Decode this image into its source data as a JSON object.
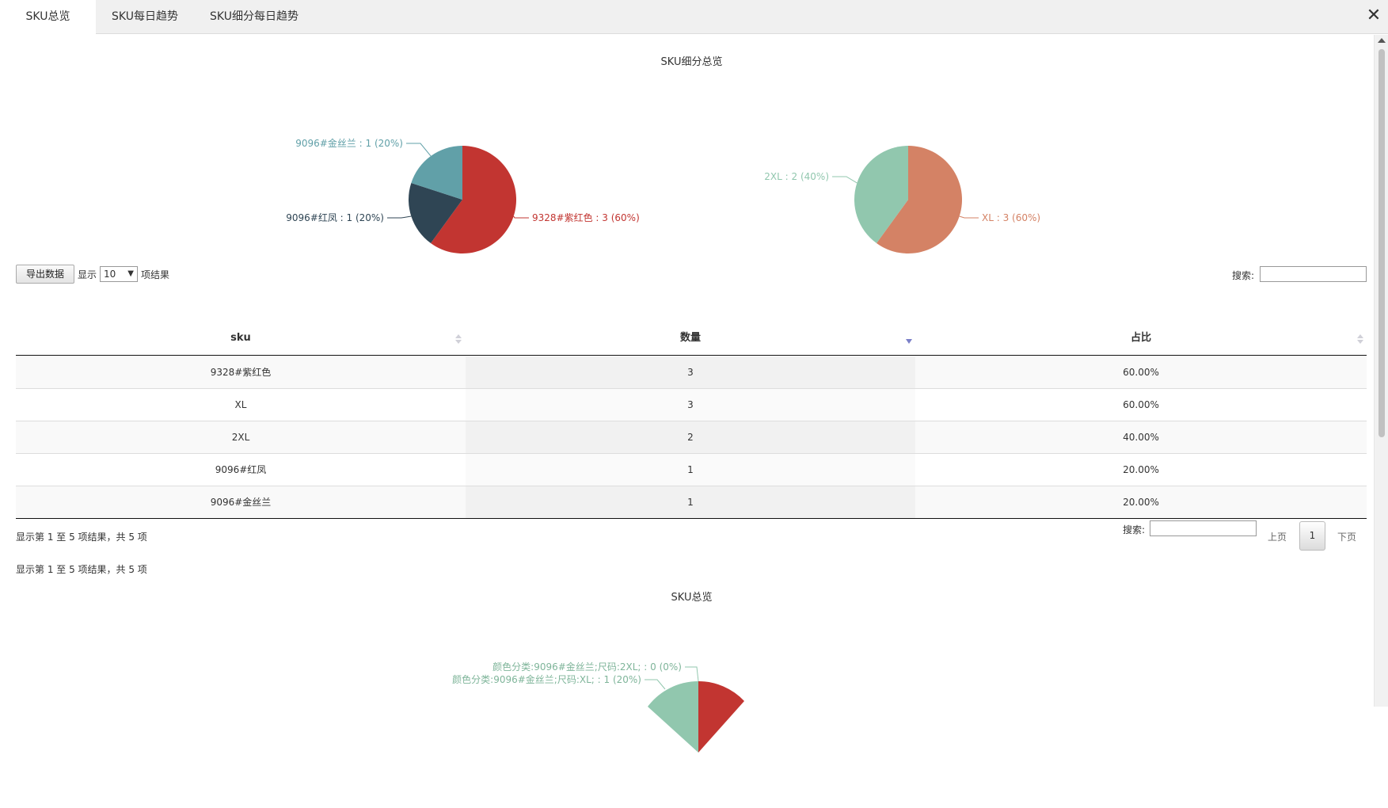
{
  "tabs": [
    {
      "label": "SKU总览"
    },
    {
      "label": "SKU每日趋势"
    },
    {
      "label": "SKU细分每日趋势"
    }
  ],
  "close_symbol": "✕",
  "section1": {
    "title": "SKU细分总览",
    "charts": [
      {
        "type": "pie",
        "slices": [
          {
            "label": "9328#紫红色 : 3 (60%)",
            "name": "9328#紫红色",
            "value": 3,
            "percent": 60,
            "color": "#c23531"
          },
          {
            "label": "9096#红凤 : 1 (20%)",
            "name": "9096#红凤",
            "value": 1,
            "percent": 20,
            "color": "#2f4554"
          },
          {
            "label": "9096#金丝兰 : 1 (20%)",
            "name": "9096#金丝兰",
            "value": 1,
            "percent": 20,
            "color": "#61a0a8"
          }
        ]
      },
      {
        "type": "pie",
        "slices": [
          {
            "label": "XL : 3 (60%)",
            "name": "XL",
            "value": 3,
            "percent": 60,
            "color": "#d48265"
          },
          {
            "label": "2XL : 2 (40%)",
            "name": "2XL",
            "value": 2,
            "percent": 40,
            "color": "#91c7ae"
          }
        ]
      }
    ]
  },
  "toolbar": {
    "export_label": "导出数据",
    "show_label": "显示",
    "page_size": "10",
    "show_suffix": "项结果",
    "search_label": "搜索:"
  },
  "table": {
    "headers": [
      "sku",
      "数量",
      "占比"
    ],
    "rows": [
      [
        "9328#紫红色",
        "3",
        "60.00%"
      ],
      [
        "XL",
        "3",
        "60.00%"
      ],
      [
        "2XL",
        "2",
        "40.00%"
      ],
      [
        "9096#红凤",
        "1",
        "20.00%"
      ],
      [
        "9096#金丝兰",
        "1",
        "20.00%"
      ]
    ]
  },
  "footer": {
    "info": "显示第 1 至 5 项结果，共 5 项",
    "search_label": "搜索:",
    "prev": "上页",
    "page": "1",
    "next": "下页",
    "info2": "显示第 1 至 5 项结果，共 5 项"
  },
  "section2": {
    "title": "SKU总览",
    "labels": [
      "颜色分类:9096#金丝兰;尺码:2XL; : 0 (0%)",
      "颜色分类:9096#金丝兰;尺码:XL; : 1 (20%)"
    ]
  },
  "chart_data": [
    {
      "type": "pie",
      "title": "",
      "categories": [
        "9328#紫红色",
        "9096#红凤",
        "9096#金丝兰"
      ],
      "values": [
        3,
        1,
        1
      ]
    },
    {
      "type": "pie",
      "title": "",
      "categories": [
        "XL",
        "2XL"
      ],
      "values": [
        3,
        2
      ]
    }
  ]
}
